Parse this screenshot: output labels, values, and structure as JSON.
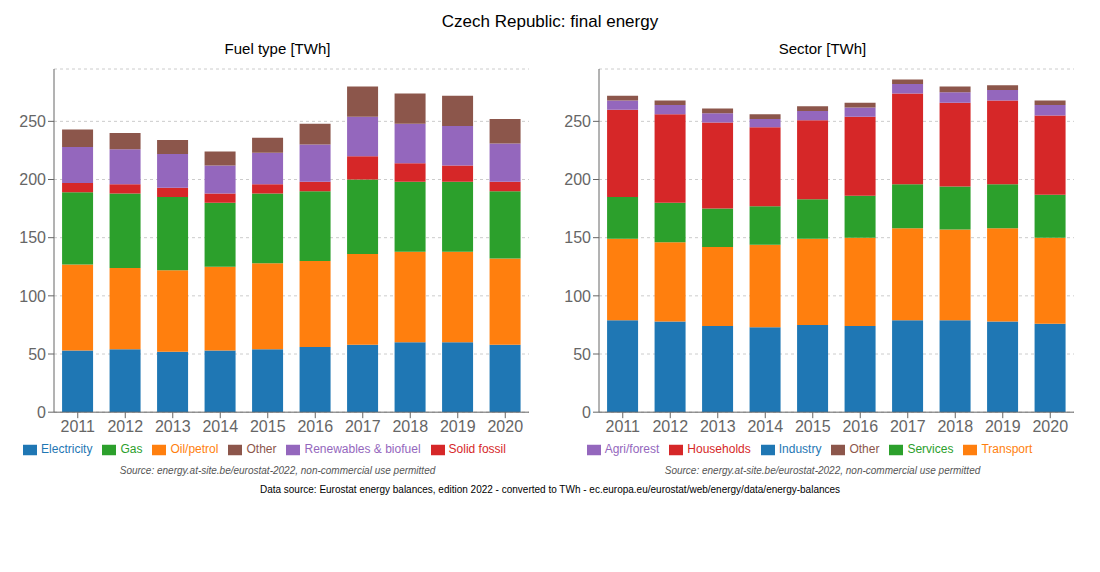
{
  "title": "Czech Republic: final energy",
  "annotations": [
    "Data source: Eurostat energy balances, edition 2022 - converted to TWh - ec.europa.eu/eurostat/web/energy/data/energy-balances"
  ],
  "chart_data": [
    {
      "type": "bar",
      "stacked": true,
      "title": "Fuel type [TWh]",
      "categories": [
        2011,
        2012,
        2013,
        2014,
        2015,
        2016,
        2017,
        2018,
        2019,
        2020
      ],
      "series": [
        {
          "name": "Electricity",
          "color": "#1f77b4",
          "values": [
            53,
            54,
            52,
            53,
            54,
            56,
            58,
            60,
            60,
            58
          ]
        },
        {
          "name": "Oil/petrol",
          "color": "#ff7f0e",
          "values": [
            74,
            70,
            70,
            72,
            74,
            74,
            78,
            78,
            78,
            74
          ]
        },
        {
          "name": "Gas",
          "color": "#2ca02c",
          "values": [
            62,
            64,
            63,
            55,
            60,
            60,
            64,
            60,
            60,
            58
          ]
        },
        {
          "name": "Solid fossil",
          "color": "#d62728",
          "values": [
            8,
            8,
            8,
            8,
            8,
            8,
            20,
            16,
            14,
            8
          ]
        },
        {
          "name": "Renewables & biofuel",
          "color": "#9467bd",
          "values": [
            31,
            30,
            29,
            24,
            27,
            32,
            34,
            34,
            34,
            33
          ]
        },
        {
          "name": "Other",
          "color": "#8c564b",
          "values": [
            15,
            14,
            12,
            12,
            13,
            18,
            26,
            26,
            26,
            21
          ]
        }
      ],
      "ylim": [
        0,
        295
      ],
      "yticks": [
        0,
        50,
        100,
        150,
        200,
        250
      ],
      "grid": true,
      "legend": "bottom",
      "annotations": [
        "Source: energy.at-site.be/eurostat-2022, non-commercial use permitted"
      ]
    },
    {
      "type": "bar",
      "stacked": true,
      "title": "Sector [TWh]",
      "categories": [
        2011,
        2012,
        2013,
        2014,
        2015,
        2016,
        2017,
        2018,
        2019,
        2020
      ],
      "series": [
        {
          "name": "Industry",
          "color": "#1f77b4",
          "values": [
            79,
            78,
            74,
            73,
            75,
            74,
            79,
            79,
            78,
            76
          ]
        },
        {
          "name": "Transport",
          "color": "#ff7f0e",
          "values": [
            70,
            68,
            68,
            71,
            74,
            76,
            79,
            78,
            80,
            74
          ]
        },
        {
          "name": "Services",
          "color": "#2ca02c",
          "values": [
            36,
            34,
            33,
            33,
            34,
            36,
            38,
            37,
            38,
            37
          ]
        },
        {
          "name": "Households",
          "color": "#d62728",
          "values": [
            75,
            76,
            74,
            68,
            68,
            68,
            78,
            72,
            72,
            68
          ]
        },
        {
          "name": "Agri/forest",
          "color": "#9467bd",
          "values": [
            8,
            8,
            8,
            7,
            8,
            8,
            8,
            9,
            9,
            9
          ]
        },
        {
          "name": "Other",
          "color": "#8c564b",
          "values": [
            4,
            4,
            4,
            4,
            4,
            4,
            4,
            5,
            4,
            4
          ]
        }
      ],
      "ylim": [
        0,
        295
      ],
      "yticks": [
        0,
        50,
        100,
        150,
        200,
        250
      ],
      "grid": true,
      "legend": "bottom",
      "annotations": [
        "Source: energy.at-site.be/eurostat-2022, non-commercial use permitted"
      ]
    }
  ]
}
